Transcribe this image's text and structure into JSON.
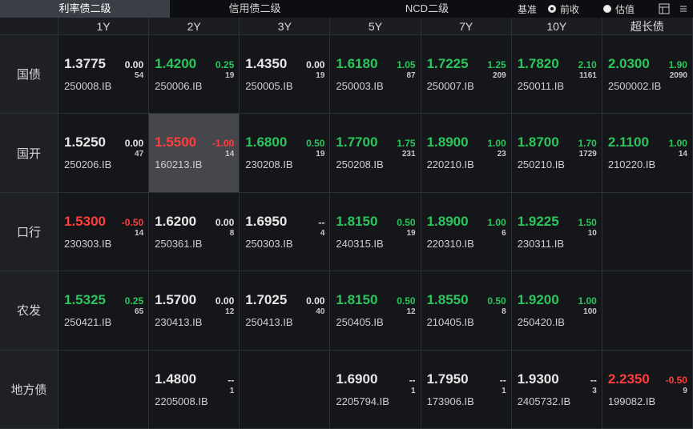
{
  "tabs": [
    {
      "label": "利率债二级",
      "active": true
    },
    {
      "label": "信用债二级",
      "active": false
    },
    {
      "label": "NCD二级",
      "active": false
    }
  ],
  "benchmark": {
    "label": "基准",
    "options": [
      {
        "label": "前收",
        "checked": true
      },
      {
        "label": "估值",
        "checked": false
      }
    ]
  },
  "columns": [
    "1Y",
    "2Y",
    "3Y",
    "5Y",
    "7Y",
    "10Y",
    "超长债"
  ],
  "rows": [
    {
      "label": "国债",
      "cells": [
        {
          "price": "1.3775",
          "change": "0.00",
          "count": "54",
          "code": "250008.IB",
          "color": "#e6e6e6"
        },
        {
          "price": "1.4200",
          "change": "0.25",
          "count": "19",
          "code": "250006.IB",
          "color": "#2bc55c"
        },
        {
          "price": "1.4350",
          "change": "0.00",
          "count": "19",
          "code": "250005.IB",
          "color": "#e6e6e6"
        },
        {
          "price": "1.6180",
          "change": "1.05",
          "count": "87",
          "code": "250003.IB",
          "color": "#2bc55c"
        },
        {
          "price": "1.7225",
          "change": "1.25",
          "count": "209",
          "code": "250007.IB",
          "color": "#2bc55c"
        },
        {
          "price": "1.7820",
          "change": "2.10",
          "count": "1161",
          "code": "250011.IB",
          "color": "#2bc55c"
        },
        {
          "price": "2.0300",
          "change": "1.90",
          "count": "2090",
          "code": "2500002.IB",
          "color": "#2bc55c"
        }
      ]
    },
    {
      "label": "国开",
      "cells": [
        {
          "price": "1.5250",
          "change": "0.00",
          "count": "47",
          "code": "250206.IB",
          "color": "#e6e6e6"
        },
        {
          "price": "1.5500",
          "change": "-1.00",
          "count": "14",
          "code": "160213.IB",
          "color": "#ff3d3d",
          "highlighted": true
        },
        {
          "price": "1.6800",
          "change": "0.50",
          "count": "19",
          "code": "230208.IB",
          "color": "#2bc55c"
        },
        {
          "price": "1.7700",
          "change": "1.75",
          "count": "231",
          "code": "250208.IB",
          "color": "#2bc55c"
        },
        {
          "price": "1.8900",
          "change": "1.00",
          "count": "23",
          "code": "220210.IB",
          "color": "#2bc55c"
        },
        {
          "price": "1.8700",
          "change": "1.70",
          "count": "1729",
          "code": "250210.IB",
          "color": "#2bc55c"
        },
        {
          "price": "2.1100",
          "change": "1.00",
          "count": "14",
          "code": "210220.IB",
          "color": "#2bc55c"
        }
      ]
    },
    {
      "label": "口行",
      "cells": [
        {
          "price": "1.5300",
          "change": "-0.50",
          "count": "14",
          "code": "230303.IB",
          "color": "#ff3d3d"
        },
        {
          "price": "1.6200",
          "change": "0.00",
          "count": "8",
          "code": "250361.IB",
          "color": "#e6e6e6"
        },
        {
          "price": "1.6950",
          "change": "--",
          "count": "4",
          "code": "250303.IB",
          "color": "#e6e6e6"
        },
        {
          "price": "1.8150",
          "change": "0.50",
          "count": "19",
          "code": "240315.IB",
          "color": "#2bc55c"
        },
        {
          "price": "1.8900",
          "change": "1.00",
          "count": "6",
          "code": "220310.IB",
          "color": "#2bc55c"
        },
        {
          "price": "1.9225",
          "change": "1.50",
          "count": "10",
          "code": "230311.IB",
          "color": "#2bc55c"
        },
        null
      ]
    },
    {
      "label": "农发",
      "cells": [
        {
          "price": "1.5325",
          "change": "0.25",
          "count": "65",
          "code": "250421.IB",
          "color": "#2bc55c"
        },
        {
          "price": "1.5700",
          "change": "0.00",
          "count": "12",
          "code": "230413.IB",
          "color": "#e6e6e6"
        },
        {
          "price": "1.7025",
          "change": "0.00",
          "count": "40",
          "code": "250413.IB",
          "color": "#e6e6e6"
        },
        {
          "price": "1.8150",
          "change": "0.50",
          "count": "12",
          "code": "250405.IB",
          "color": "#2bc55c"
        },
        {
          "price": "1.8550",
          "change": "0.50",
          "count": "8",
          "code": "210405.IB",
          "color": "#2bc55c"
        },
        {
          "price": "1.9200",
          "change": "1.00",
          "count": "100",
          "code": "250420.IB",
          "color": "#2bc55c"
        },
        null
      ]
    },
    {
      "label": "地方债",
      "cells": [
        null,
        {
          "price": "1.4800",
          "change": "--",
          "count": "1",
          "code": "2205008.IB",
          "color": "#e6e6e6"
        },
        null,
        {
          "price": "1.6900",
          "change": "--",
          "count": "1",
          "code": "2205794.IB",
          "color": "#e6e6e6"
        },
        {
          "price": "1.7950",
          "change": "--",
          "count": "1",
          "code": "173906.IB",
          "color": "#e6e6e6"
        },
        {
          "price": "1.9300",
          "change": "--",
          "count": "3",
          "code": "2405732.IB",
          "color": "#e6e6e6"
        },
        {
          "price": "2.2350",
          "change": "-0.50",
          "count": "9",
          "code": "199082.IB",
          "color": "#ff3d3d"
        }
      ]
    }
  ]
}
